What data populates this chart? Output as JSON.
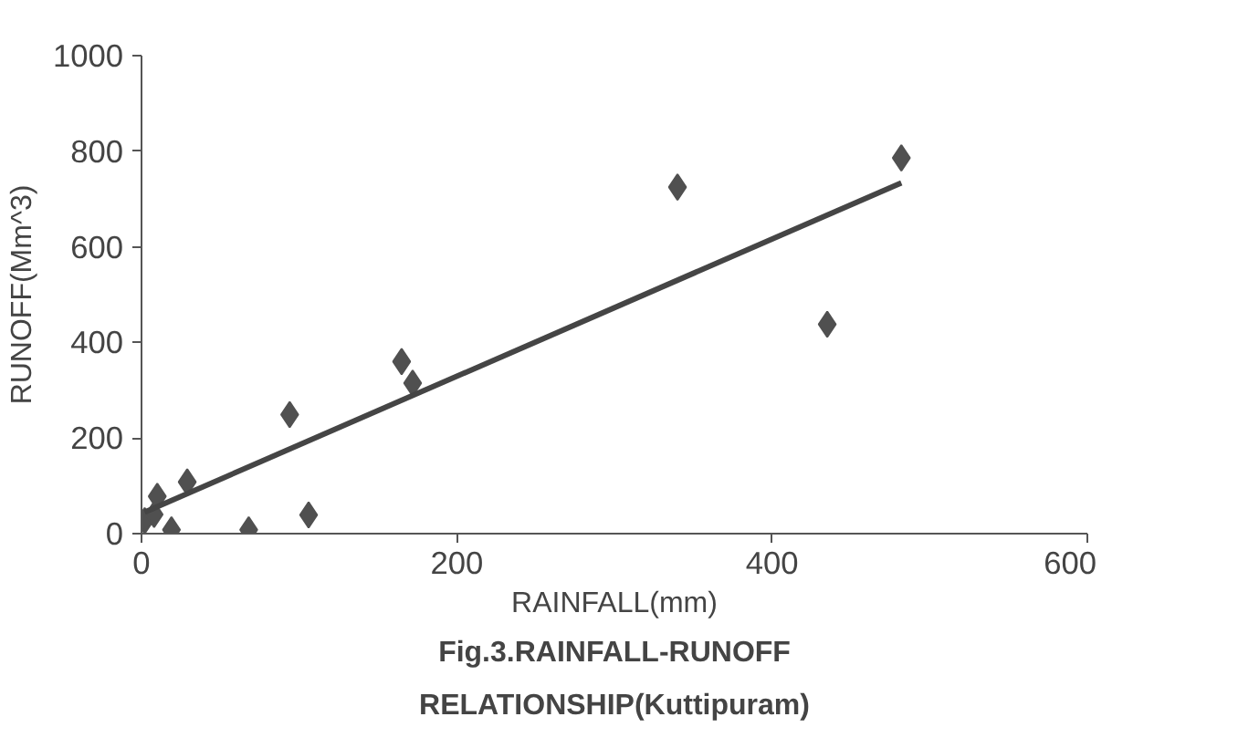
{
  "chart_data": {
    "type": "scatter",
    "title": "Fig.3.RAINFALL-RUNOFF RELATIONSHIP(Kuttipuram)",
    "xlabel": "RAINFALL(mm)",
    "ylabel": "RUNOFF(Mm^3)",
    "xlim": [
      0,
      600
    ],
    "ylim": [
      0,
      1000
    ],
    "xticks": [
      0,
      200,
      400,
      600
    ],
    "yticks": [
      0,
      200,
      400,
      600,
      800,
      1000
    ],
    "grid": false,
    "series": [
      {
        "marker": "diamond",
        "color": "#505050",
        "x": [
          2,
          8,
          10,
          19,
          29,
          68,
          94,
          106,
          165,
          172,
          340,
          435,
          482
        ],
        "values": [
          27,
          40,
          78,
          8,
          108,
          8,
          249,
          39,
          360,
          315,
          725,
          438,
          786
        ]
      },
      {
        "type": "line",
        "color": "#454545",
        "line_style": "solid",
        "x": [
          2,
          482
        ],
        "values": [
          45,
          734
        ]
      }
    ]
  }
}
